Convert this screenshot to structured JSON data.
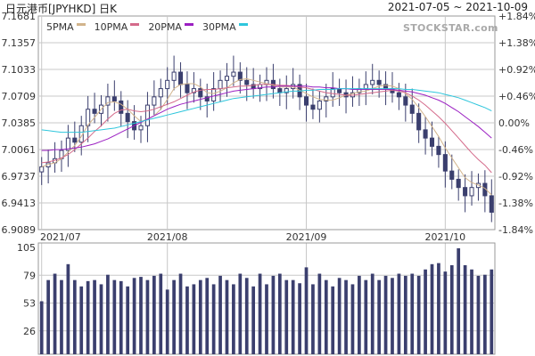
{
  "header": {
    "title": "日元港币[JPYHKD] 日K",
    "date_range": "2021-07-05 ~ 2021-10-09"
  },
  "watermark": "STOCKSTAR.com",
  "legend": [
    {
      "label": "5PMA",
      "color": "#d2b48c"
    },
    {
      "label": "10PMA",
      "color": "#d46a8a"
    },
    {
      "label": "20PMA",
      "color": "#9b1fc2"
    },
    {
      "label": "30PMA",
      "color": "#2ec6dc"
    }
  ],
  "colors": {
    "candle": "#3b3f6e",
    "grid": "#c8c8c8",
    "frame": "#999999"
  },
  "chart_data": [
    {
      "type": "candlestick",
      "title": "日元港币[JPYHKD] 日K",
      "ylim": [
        6.9089,
        7.1681
      ],
      "y_ticks_left": [
        "7.1681",
        "7.1357",
        "7.1033",
        "7.0709",
        "7.0385",
        "7.0061",
        "6.9737",
        "6.9413",
        "6.9089"
      ],
      "y_ticks_right": [
        "+1.84%",
        "+1.38%",
        "+0.92%",
        "+0.46%",
        "0.00%",
        "-0.46%",
        "-0.92%",
        "-1.38%",
        "-1.84%"
      ],
      "x_ticks": [
        "2021/07",
        "2021/08",
        "2021/09",
        "2021/10"
      ],
      "x_tick_index": [
        0,
        19,
        40,
        61
      ],
      "grid": true,
      "close": [
        6.985,
        6.99,
        6.995,
        7.005,
        7.02,
        7.015,
        7.035,
        7.055,
        7.05,
        7.06,
        7.07,
        7.065,
        7.05,
        7.04,
        7.03,
        7.035,
        7.06,
        7.07,
        7.08,
        7.09,
        7.1,
        7.085,
        7.075,
        7.08,
        7.07,
        7.065,
        7.08,
        7.09,
        7.095,
        7.1,
        7.09,
        7.085,
        7.08,
        7.085,
        7.09,
        7.08,
        7.075,
        7.08,
        7.085,
        7.07,
        7.06,
        7.055,
        7.065,
        7.07,
        7.08,
        7.075,
        7.07,
        7.075,
        7.08,
        7.085,
        7.09,
        7.085,
        7.08,
        7.075,
        7.07,
        7.06,
        7.05,
        7.03,
        7.02,
        7.01,
        7.0,
        6.98,
        6.97,
        6.96,
        6.95,
        6.96,
        6.965,
        6.95,
        6.93
      ],
      "series": [
        {
          "name": "5PMA",
          "values": [
            6.985,
            6.988,
            6.99,
            6.995,
            7.003,
            7.011,
            7.022,
            7.036,
            7.045,
            7.055,
            7.063,
            7.064,
            7.061,
            7.055,
            7.047,
            7.04,
            7.043,
            7.047,
            7.055,
            7.067,
            7.08,
            7.085,
            7.086,
            7.086,
            7.082,
            7.075,
            7.074,
            7.077,
            7.081,
            7.087,
            7.091,
            7.092,
            7.09,
            7.088,
            7.086,
            7.084,
            7.082,
            7.082,
            7.082,
            7.078,
            7.074,
            7.07,
            7.067,
            7.066,
            7.066,
            7.069,
            7.072,
            7.074,
            7.076,
            7.077,
            7.08,
            7.083,
            7.084,
            7.083,
            7.08,
            7.074,
            7.067,
            7.057,
            7.046,
            7.034,
            7.022,
            7.008,
            6.996,
            6.984,
            6.972,
            6.966,
            6.963,
            6.959,
            6.951
          ]
        },
        {
          "name": "10PMA",
          "values": [
            6.99,
            6.991,
            6.993,
            6.996,
            7.0,
            7.006,
            7.013,
            7.02,
            7.028,
            7.035,
            7.043,
            7.05,
            7.054,
            7.055,
            7.053,
            7.052,
            7.053,
            7.055,
            7.058,
            7.061,
            7.064,
            7.068,
            7.072,
            7.076,
            7.078,
            7.079,
            7.079,
            7.08,
            7.081,
            7.082,
            7.083,
            7.083,
            7.084,
            7.085,
            7.085,
            7.085,
            7.084,
            7.084,
            7.083,
            7.082,
            7.081,
            7.079,
            7.077,
            7.075,
            7.074,
            7.073,
            7.072,
            7.072,
            7.073,
            7.074,
            7.075,
            7.076,
            7.077,
            7.078,
            7.077,
            7.075,
            7.071,
            7.066,
            7.06,
            7.053,
            7.046,
            7.038,
            7.029,
            7.02,
            7.011,
            7.002,
            6.994,
            6.987,
            6.978
          ]
        },
        {
          "name": "20PMA",
          "values": [
            7.005,
            7.005,
            7.006,
            7.006,
            7.007,
            7.008,
            7.009,
            7.011,
            7.013,
            7.016,
            7.019,
            7.023,
            7.027,
            7.031,
            7.035,
            7.039,
            7.043,
            7.047,
            7.051,
            7.055,
            7.058,
            7.061,
            7.063,
            7.065,
            7.067,
            7.069,
            7.071,
            7.073,
            7.075,
            7.077,
            7.078,
            7.079,
            7.08,
            7.081,
            7.082,
            7.082,
            7.083,
            7.083,
            7.083,
            7.083,
            7.083,
            7.082,
            7.082,
            7.081,
            7.081,
            7.08,
            7.08,
            7.079,
            7.079,
            7.079,
            7.079,
            7.079,
            7.079,
            7.079,
            7.078,
            7.077,
            7.076,
            7.074,
            7.072,
            7.069,
            7.066,
            7.062,
            7.057,
            7.052,
            7.046,
            7.04,
            7.034,
            7.027,
            7.02
          ]
        },
        {
          "name": "30PMA",
          "values": [
            7.03,
            7.029,
            7.028,
            7.027,
            7.027,
            7.027,
            7.027,
            7.028,
            7.029,
            7.03,
            7.031,
            7.032,
            7.034,
            7.036,
            7.038,
            7.04,
            7.042,
            7.044,
            7.046,
            7.048,
            7.05,
            7.052,
            7.054,
            7.056,
            7.058,
            7.06,
            7.062,
            7.064,
            7.066,
            7.068,
            7.069,
            7.07,
            7.071,
            7.072,
            7.073,
            7.074,
            7.075,
            7.076,
            7.077,
            7.077,
            7.078,
            7.078,
            7.079,
            7.079,
            7.079,
            7.08,
            7.08,
            7.08,
            7.08,
            7.08,
            7.08,
            7.08,
            7.08,
            7.08,
            7.08,
            7.079,
            7.079,
            7.078,
            7.077,
            7.076,
            7.075,
            7.073,
            7.071,
            7.069,
            7.066,
            7.063,
            7.06,
            7.057,
            7.053
          ]
        }
      ]
    },
    {
      "type": "bar",
      "y_ticks": [
        "105",
        "79",
        "53",
        "26"
      ],
      "ylim": [
        0,
        105
      ],
      "values": [
        50,
        70,
        76,
        70,
        85,
        70,
        64,
        69,
        70,
        66,
        75,
        70,
        69,
        64,
        72,
        73,
        70,
        74,
        76,
        61,
        70,
        76,
        64,
        66,
        70,
        72,
        66,
        74,
        70,
        66,
        76,
        72,
        64,
        76,
        66,
        74,
        76,
        70,
        70,
        67,
        82,
        66,
        76,
        70,
        64,
        72,
        70,
        66,
        74,
        70,
        76,
        70,
        74,
        72,
        76,
        74,
        76,
        74,
        80,
        85,
        86,
        78,
        84,
        100,
        84,
        80,
        74,
        75,
        80
      ]
    }
  ]
}
